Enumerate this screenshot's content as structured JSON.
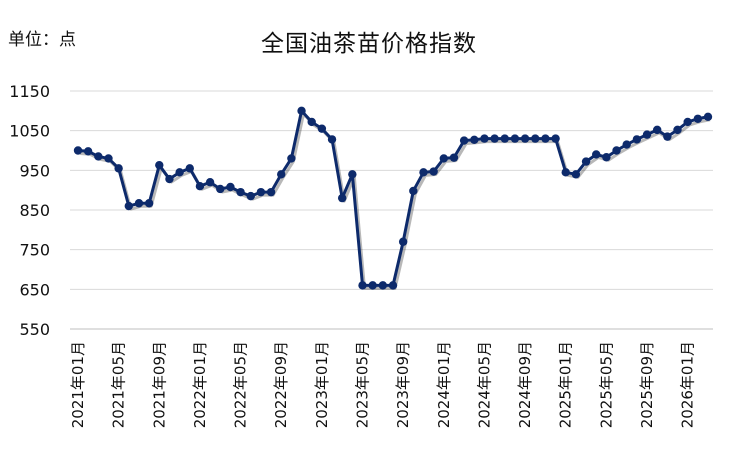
{
  "unit_label": "单位：点",
  "chart_data": {
    "type": "line",
    "title": "全国油茶苗价格指数",
    "xlabel": "",
    "ylabel": "",
    "ylim": [
      550,
      1150
    ],
    "yticks": [
      550,
      650,
      750,
      850,
      950,
      1050,
      1150
    ],
    "grid": true,
    "color": "#0d2a6b",
    "x_tick_labels": [
      "2021年01月",
      "2021年05月",
      "2021年09月",
      "2022年01月",
      "2022年05月",
      "2022年09月",
      "2023年01月",
      "2023年05月",
      "2023年09月",
      "2024年01月",
      "2024年05月",
      "2024年09月",
      "2025年01月",
      "2025年05月",
      "2025年09月",
      "2026年01月"
    ],
    "x": [
      "2021年01月",
      "2021年02月",
      "2021年03月",
      "2021年04月",
      "2021年05月",
      "2021年06月",
      "2021年07月",
      "2021年08月",
      "2021年09月",
      "2021年10月",
      "2021年11月",
      "2021年12月",
      "2022年01月",
      "2022年02月",
      "2022年03月",
      "2022年04月",
      "2022年05月",
      "2022年06月",
      "2022年07月",
      "2022年08月",
      "2022年09月",
      "2022年10月",
      "2022年11月",
      "2022年12月",
      "2023年01月",
      "2023年02月",
      "2023年03月",
      "2023年04月",
      "2023年05月",
      "2023年06月",
      "2023年07月",
      "2023年08月",
      "2023年09月",
      "2023年10月",
      "2023年11月",
      "2023年12月",
      "2024年01月",
      "2024年02月",
      "2024年03月",
      "2024年04月",
      "2024年05月",
      "2024年06月",
      "2024年07月",
      "2024年08月",
      "2024年09月",
      "2024年10月",
      "2024年11月",
      "2024年12月",
      "2025年01月",
      "2025年02月",
      "2025年03月",
      "2025年04月",
      "2025年05月",
      "2025年06月",
      "2025年07月",
      "2025年08月",
      "2025年09月",
      "2025年10月",
      "2025年11月",
      "2025年12月",
      "2026年01月",
      "2026年02月",
      "2026年03月"
    ],
    "series": [
      {
        "values": [
          1000,
          998,
          985,
          980,
          955,
          860,
          867,
          867,
          963,
          928,
          945,
          955,
          910,
          920,
          903,
          908,
          895,
          885,
          895,
          895,
          940,
          980,
          1100,
          1072,
          1055,
          1028,
          880,
          940,
          660,
          660,
          660,
          660,
          770,
          898,
          945,
          947,
          980,
          982,
          1025,
          1027,
          1030,
          1030,
          1030,
          1030,
          1030,
          1030,
          1030,
          1030,
          945,
          940,
          972,
          990,
          983,
          1000,
          1015,
          1028,
          1040,
          1052,
          1035,
          1052,
          1072,
          1080,
          1085
        ]
      }
    ]
  }
}
